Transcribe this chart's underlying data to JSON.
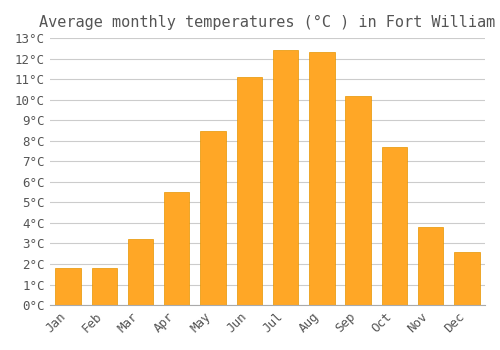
{
  "title": "Average monthly temperatures (°C ) in Fort William",
  "months": [
    "Jan",
    "Feb",
    "Mar",
    "Apr",
    "May",
    "Jun",
    "Jul",
    "Aug",
    "Sep",
    "Oct",
    "Nov",
    "Dec"
  ],
  "values": [
    1.8,
    1.8,
    3.2,
    5.5,
    8.5,
    11.1,
    12.4,
    12.3,
    10.2,
    7.7,
    3.8,
    2.6
  ],
  "bar_color": "#FFA726",
  "bar_edge_color": "#E69500",
  "background_color": "#FFFFFF",
  "grid_color": "#CCCCCC",
  "text_color": "#555555",
  "ylim": [
    0,
    13
  ],
  "ytick_step": 1,
  "title_fontsize": 11,
  "tick_fontsize": 9,
  "font_family": "monospace"
}
